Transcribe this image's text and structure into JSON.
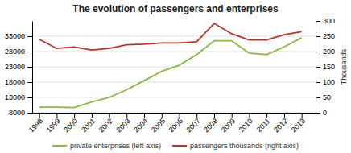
{
  "chart_data": {
    "type": "line",
    "title": "The evolution of passengers and enterprises",
    "x": [
      1998,
      1999,
      2000,
      2001,
      2002,
      2003,
      2004,
      2005,
      2006,
      2007,
      2008,
      2009,
      2010,
      2011,
      2012,
      2013
    ],
    "xlim": [
      1997.6,
      2013.8
    ],
    "xticks": [
      1998,
      1999,
      2000,
      2001,
      2002,
      2003,
      2004,
      2005,
      2006,
      2007,
      2008,
      2009,
      2010,
      2011,
      2012,
      2013
    ],
    "series": [
      {
        "name": "private enterprises (left axis)",
        "color": "#8ab840",
        "values": [
          9800,
          9800,
          9700,
          11500,
          13000,
          15500,
          18500,
          21500,
          23500,
          27000,
          31500,
          31500,
          27500,
          27000,
          29500,
          32500
        ]
      },
      {
        "name": "passengers thousands (right axis)",
        "color": "#c0312c",
        "axis": "y2",
        "values": [
          240,
          210,
          215,
          205,
          210,
          222,
          224,
          228,
          228,
          232,
          292,
          258,
          238,
          238,
          255,
          265
        ]
      }
    ],
    "ylim": [
      8000,
      38000
    ],
    "yticks": [
      8000,
      13000,
      18000,
      23000,
      28000,
      33000
    ],
    "y2lim": [
      0,
      300
    ],
    "y2ticks": [
      0,
      50,
      100,
      150,
      200,
      250,
      300
    ],
    "y2_label": "Thousands",
    "grid": true,
    "legend": "bottom"
  }
}
